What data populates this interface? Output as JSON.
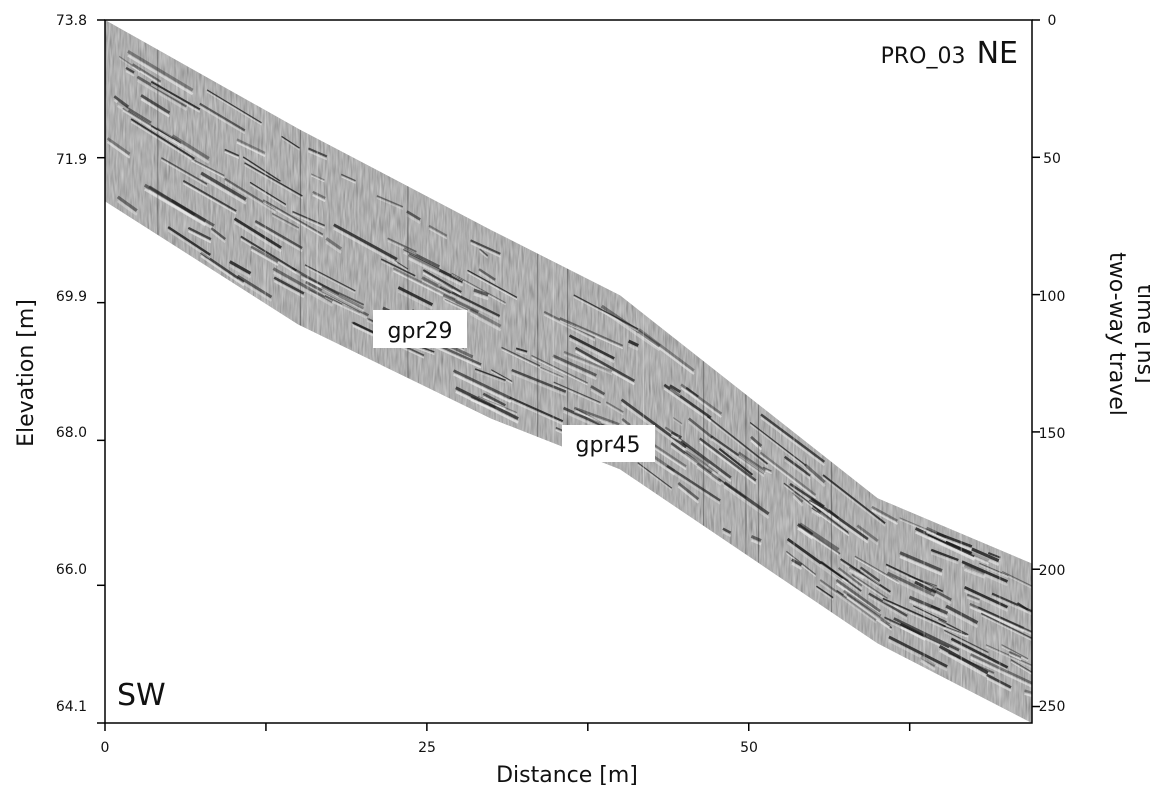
{
  "chart_data": {
    "type": "heatmap",
    "title": "PRO_03 NE",
    "title_prefix": "PRO_03",
    "title_direction": "NE",
    "corner_label": "SW",
    "xlabel": "Distance [m]",
    "ylabel_left": "Elevation [m]",
    "ylabel_right_line1": "two-way travel",
    "ylabel_right_line2": "time [ns]",
    "xlim": [
      0,
      72
    ],
    "ylim_left": [
      64.1,
      73.8
    ],
    "ylim_right": [
      0,
      256
    ],
    "x_ticks": [
      "0",
      "25",
      "50"
    ],
    "y_left_ticks": [
      "73.8",
      "71.9",
      "69.9",
      "68.0",
      "66.0",
      "64.1"
    ],
    "y_right_ticks": [
      "0",
      "50",
      "100",
      "150",
      "200",
      "250"
    ],
    "x_tick_values": [
      0,
      12.5,
      25,
      37.5,
      50,
      62.5
    ],
    "y_left_tick_values": [
      73.8,
      71.9,
      69.9,
      68.0,
      66.0,
      64.1
    ],
    "y_right_tick_values": [
      0,
      50,
      100,
      150,
      200,
      250
    ],
    "profile": {
      "top_surface": [
        [
          0,
          73.8
        ],
        [
          15,
          72.3
        ],
        [
          30,
          70.9
        ],
        [
          40,
          70.0
        ],
        [
          50,
          68.6
        ],
        [
          60,
          67.2
        ],
        [
          72,
          66.3
        ]
      ],
      "bottom_surface": [
        [
          0,
          71.3
        ],
        [
          15,
          69.6
        ],
        [
          30,
          68.3
        ],
        [
          40,
          67.6
        ],
        [
          50,
          66.4
        ],
        [
          60,
          65.2
        ],
        [
          72,
          64.1
        ]
      ]
    },
    "annotations": [
      {
        "text": "gpr29",
        "x": 23,
        "y": 69.7
      },
      {
        "text": "gpr45",
        "x": 38,
        "y": 68.0
      }
    ],
    "colors": {
      "radargram_base": "#888888",
      "reflector_dark": "#1a1a1a",
      "reflector_light": "#eeeeee",
      "background": "#ffffff"
    }
  }
}
